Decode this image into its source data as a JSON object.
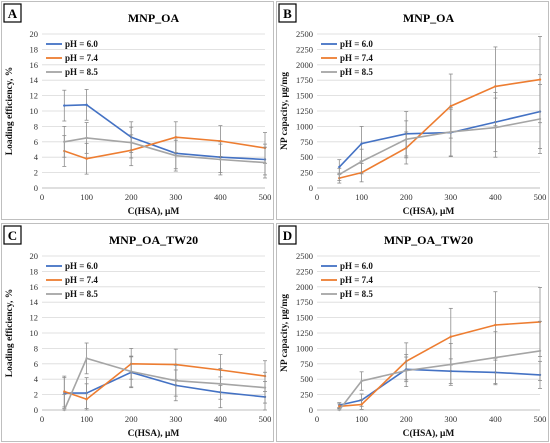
{
  "chart_data": [
    {
      "panel": "A",
      "type": "line",
      "title": "MNP_OA",
      "xlabel": "C(HSA), μM",
      "ylabel": "Loading efficiency, %",
      "xlim": [
        0,
        500
      ],
      "ylim": [
        0,
        20
      ],
      "xticks": [
        0,
        100,
        200,
        300,
        400,
        500
      ],
      "yticks": [
        0,
        2,
        4,
        6,
        8,
        10,
        12,
        14,
        16,
        18,
        20
      ],
      "grid": true,
      "legend": "top-left",
      "x": [
        50,
        100,
        200,
        300,
        400,
        500
      ],
      "series": [
        {
          "name": "pH = 6.0",
          "color": "#4472C4",
          "values": [
            10.7,
            10.8,
            6.6,
            4.5,
            4.0,
            3.7
          ],
          "errors": [
            2.0,
            2.0,
            2.0,
            2.0,
            2.0,
            2.0
          ]
        },
        {
          "name": "pH = 7.4",
          "color": "#ED7D31",
          "values": [
            4.8,
            3.8,
            4.9,
            6.6,
            6.1,
            5.2
          ],
          "errors": [
            2.0,
            2.0,
            2.0,
            2.0,
            2.0,
            2.0
          ]
        },
        {
          "name": "pH = 8.5",
          "color": "#A5A5A5",
          "values": [
            6.0,
            6.5,
            5.9,
            4.2,
            3.7,
            3.3
          ],
          "errors": [
            2.0,
            2.0,
            2.0,
            2.0,
            2.0,
            2.0
          ]
        }
      ]
    },
    {
      "panel": "B",
      "type": "line",
      "title": "MNP_OA",
      "xlabel": "C(HSA), μM",
      "ylabel": "NP capacity, μg/mg",
      "xlim": [
        0,
        500
      ],
      "ylim": [
        0,
        2500
      ],
      "xticks": [
        0,
        100,
        200,
        300,
        400,
        500
      ],
      "yticks": [
        0,
        250,
        500,
        750,
        1000,
        1250,
        1500,
        1750,
        2000,
        2250,
        2500
      ],
      "grid": true,
      "legend": "top-left",
      "x": [
        50,
        100,
        200,
        300,
        400,
        500
      ],
      "series": [
        {
          "name": "pH = 6.0",
          "color": "#4472C4",
          "values": [
            340,
            720,
            880,
            900,
            1070,
            1240
          ],
          "errors": [
            120,
            280,
            360,
            380,
            480,
            600
          ]
        },
        {
          "name": "pH = 7.4",
          "color": "#ED7D31",
          "values": [
            160,
            250,
            650,
            1330,
            1650,
            1760
          ],
          "errors": [
            80,
            150,
            260,
            520,
            640,
            700
          ]
        },
        {
          "name": "pH = 8.5",
          "color": "#A5A5A5",
          "values": [
            220,
            430,
            790,
            910,
            980,
            1120
          ],
          "errors": [
            100,
            200,
            300,
            400,
            480,
            560
          ]
        }
      ]
    },
    {
      "panel": "C",
      "type": "line",
      "title": "MNP_OA_TW20",
      "xlabel": "C(HSA), μM",
      "ylabel": "Loading efficiency, %",
      "xlim": [
        0,
        500
      ],
      "ylim": [
        0,
        20
      ],
      "xticks": [
        0,
        100,
        200,
        300,
        400,
        500
      ],
      "yticks": [
        0,
        2,
        4,
        6,
        8,
        10,
        12,
        14,
        16,
        18,
        20
      ],
      "grid": true,
      "legend": "top-left",
      "x": [
        50,
        100,
        200,
        300,
        400,
        500
      ],
      "series": [
        {
          "name": "pH = 6.0",
          "color": "#4472C4",
          "values": [
            2.2,
            2.2,
            4.9,
            3.2,
            2.3,
            1.7
          ],
          "errors": [
            2.0,
            2.0,
            2.0,
            2.0,
            2.0,
            2.0
          ]
        },
        {
          "name": "pH = 7.4",
          "color": "#ED7D31",
          "values": [
            2.4,
            1.4,
            6.0,
            5.9,
            5.2,
            4.4
          ],
          "errors": [
            2.0,
            2.0,
            2.0,
            2.0,
            2.0,
            2.0
          ]
        },
        {
          "name": "pH = 8.5",
          "color": "#A5A5A5",
          "values": [
            0.0,
            6.7,
            5.0,
            3.8,
            3.4,
            2.9
          ],
          "errors": [
            2.0,
            2.0,
            2.0,
            2.0,
            2.0,
            2.0
          ]
        }
      ]
    },
    {
      "panel": "D",
      "type": "line",
      "title": "MNP_OA_TW20",
      "xlabel": "C(HSA), μM",
      "ylabel": "NP capacity, μg/mg",
      "xlim": [
        0,
        500
      ],
      "ylim": [
        0,
        2500
      ],
      "xticks": [
        0,
        100,
        200,
        300,
        400,
        500
      ],
      "yticks": [
        0,
        250,
        500,
        750,
        1000,
        1250,
        1500,
        1750,
        2000,
        2250,
        2500
      ],
      "grid": true,
      "legend": "top-left",
      "x": [
        50,
        100,
        200,
        300,
        400,
        500
      ],
      "series": [
        {
          "name": "pH = 6.0",
          "color": "#4472C4",
          "values": [
            80,
            160,
            660,
            630,
            610,
            570
          ],
          "errors": [
            40,
            100,
            200,
            200,
            200,
            220
          ]
        },
        {
          "name": "pH = 7.4",
          "color": "#ED7D31",
          "values": [
            60,
            90,
            790,
            1190,
            1380,
            1430
          ],
          "errors": [
            40,
            80,
            300,
            460,
            540,
            560
          ]
        },
        {
          "name": "pH = 8.5",
          "color": "#A5A5A5",
          "values": [
            0,
            470,
            640,
            740,
            850,
            960
          ],
          "errors": [
            30,
            150,
            260,
            340,
            420,
            480
          ]
        }
      ]
    }
  ]
}
